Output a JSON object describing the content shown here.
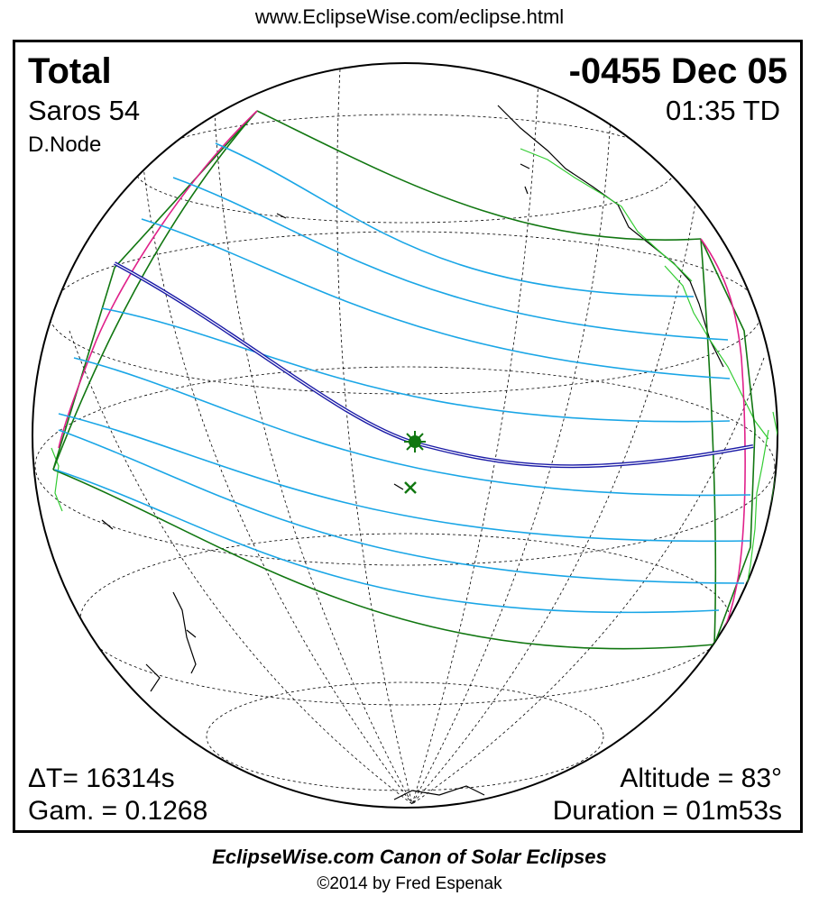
{
  "header": {
    "url": "www.EclipseWise.com/eclipse.html"
  },
  "eclipse": {
    "type": "Total",
    "date": "-0455 Dec 05",
    "saros": "Saros  54",
    "time": "01:35 TD",
    "node": "D.Node",
    "delta_t": "ΔT=  16314s",
    "gamma": "Gam. = 0.1268",
    "altitude": "Altitude = 83°",
    "duration": "Duration = 01m53s"
  },
  "footer": {
    "canon": "EclipseWise.com Canon of Solar Eclipses",
    "copyright": "©2014 by Fred Espenak"
  },
  "colors": {
    "central_line": "#1a1aa6",
    "penumbra_limits": "#117711",
    "hourly_curves": "#1aa6e6",
    "rise_set_curve": "#e0208a",
    "coastline_day": "#33cc33",
    "coastline": "#000000",
    "grid": "#000000"
  },
  "markers": {
    "greatest_eclipse": "sun-asterisk-icon",
    "sub_solar_point": "x-mark-icon"
  }
}
